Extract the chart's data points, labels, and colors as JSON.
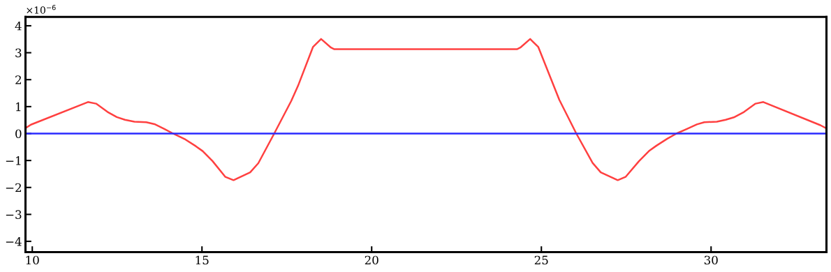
{
  "chart_data": {
    "type": "line",
    "xlim": [
      9.8,
      33.4
    ],
    "ylim": [
      -4.4,
      4.33
    ],
    "xticks": [
      10,
      15,
      20,
      25,
      30
    ],
    "yticks": [
      {
        "value": -4,
        "label": "−4"
      },
      {
        "value": -3,
        "label": "−3"
      },
      {
        "value": -2,
        "label": "−2"
      },
      {
        "value": -1,
        "label": "−1"
      },
      0,
      1,
      2,
      3,
      4
    ],
    "annotations": [
      "×10$^{−6}$"
    ],
    "grid": false,
    "legend": false,
    "marker": "none",
    "line_style": "solid",
    "series": [
      {
        "color": "#ff4040",
        "x": [
          9.8,
          9.96,
          11.64,
          11.88,
          12.22,
          12.49,
          12.73,
          13.01,
          13.36,
          13.6,
          13.88,
          14.15,
          14.51,
          14.82,
          15.02,
          15.31,
          15.69,
          15.93,
          16.42,
          16.66,
          17.12,
          17.63,
          17.83,
          18.27,
          18.51,
          18.8,
          18.9,
          24.28,
          24.38,
          24.67,
          24.91,
          25.27,
          25.53,
          26.03,
          26.51,
          26.75,
          27.25,
          27.48,
          27.88,
          28.17,
          28.39,
          28.71,
          28.98,
          29.3,
          29.58,
          29.8,
          30.17,
          30.43,
          30.67,
          30.97,
          31.31,
          31.54,
          33.22,
          33.4
        ],
        "values": [
          0.2,
          0.33,
          1.17,
          1.11,
          0.8,
          0.61,
          0.51,
          0.44,
          0.42,
          0.35,
          0.18,
          0,
          -0.22,
          -0.47,
          -0.65,
          -1.02,
          -1.61,
          -1.73,
          -1.44,
          -1.1,
          -0.02,
          1.21,
          1.77,
          3.21,
          3.51,
          3.19,
          3.13,
          3.13,
          3.19,
          3.51,
          3.21,
          2.07,
          1.25,
          0,
          -1.09,
          -1.44,
          -1.73,
          -1.61,
          -1.02,
          -0.65,
          -0.45,
          -0.19,
          0,
          0.18,
          0.34,
          0.42,
          0.44,
          0.51,
          0.6,
          0.8,
          1.11,
          1.17,
          0.31,
          0.19
        ]
      },
      {
        "color": "#2a2aff",
        "x": [
          9.8,
          33.4
        ],
        "values": [
          0,
          0
        ]
      }
    ]
  }
}
